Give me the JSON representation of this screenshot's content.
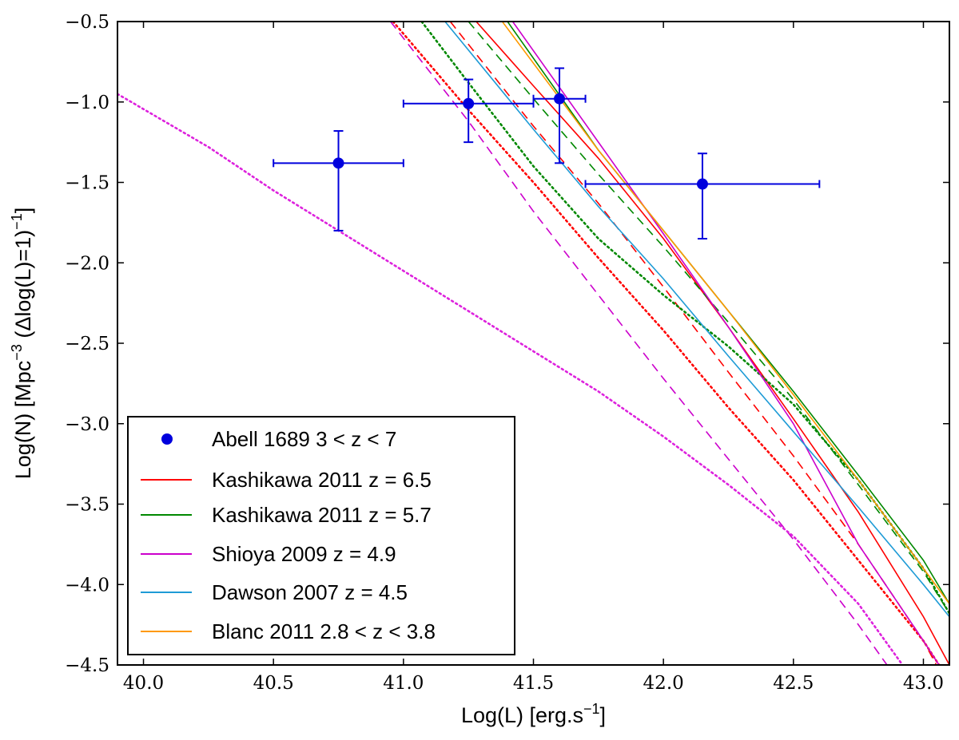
{
  "chart_data": {
    "type": "line",
    "xlabel": "Log(L) [erg.s",
    "xlabel_sup": "−1",
    "xlabel_end": "]",
    "ylabel": "Log(N) [Mpc",
    "ylabel_sup": "−3",
    "ylabel_mid": " (Δlog(L)=1)",
    "ylabel_sup2": "−1",
    "ylabel_end": "]",
    "xlim": [
      39.9,
      43.1
    ],
    "ylim": [
      -4.5,
      -0.5
    ],
    "x_ticks": [
      40.0,
      40.5,
      41.0,
      41.5,
      42.0,
      42.5,
      43.0
    ],
    "x_tick_labels": [
      "40.0",
      "40.5",
      "41.0",
      "41.5",
      "42.0",
      "42.5",
      "43.0"
    ],
    "y_ticks": [
      -0.5,
      -1.0,
      -1.5,
      -2.0,
      -2.5,
      -3.0,
      -3.5,
      -4.0,
      -4.5
    ],
    "y_tick_labels": [
      "−0.5",
      "−1.0",
      "−1.5",
      "−2.0",
      "−2.5",
      "−3.0",
      "−3.5",
      "−4.0",
      "−4.5"
    ],
    "legend_position": "lower-left",
    "observations": {
      "name": "Abell 1689 3 < z < 7",
      "color": "#0000dd",
      "points": [
        {
          "x": 40.75,
          "y": -1.38,
          "xerr": [
            0.25,
            0.25
          ],
          "yerr": [
            0.42,
            0.2
          ]
        },
        {
          "x": 41.25,
          "y": -1.01,
          "xerr": [
            0.25,
            0.25
          ],
          "yerr": [
            0.24,
            0.15
          ]
        },
        {
          "x": 41.6,
          "y": -0.98,
          "xerr": [
            0.1,
            0.1
          ],
          "yerr": [
            0.4,
            0.19
          ]
        },
        {
          "x": 42.15,
          "y": -1.51,
          "xerr": [
            0.45,
            0.45
          ],
          "yerr": [
            0.34,
            0.19
          ]
        }
      ]
    },
    "series": [
      {
        "name": "Kashikawa 2011 z = 6.5",
        "color": "#ff0000",
        "style": "solid",
        "x": [
          41.28,
          41.5,
          41.75,
          42.0,
          42.25,
          42.5,
          42.75,
          43.0,
          43.1
        ],
        "y": [
          -0.5,
          -0.9,
          -1.35,
          -1.85,
          -2.4,
          -2.97,
          -3.55,
          -4.2,
          -4.5
        ]
      },
      {
        "name": "",
        "color": "#ff0000",
        "style": "dashed",
        "x": [
          41.18,
          41.5,
          41.75,
          42.0,
          42.25,
          42.5,
          42.75,
          43.0,
          43.05
        ],
        "y": [
          -0.5,
          -1.15,
          -1.63,
          -2.15,
          -2.68,
          -3.2,
          -3.75,
          -4.35,
          -4.5
        ]
      },
      {
        "name": "",
        "color": "#ff0000",
        "style": "dotted",
        "x": [
          40.96,
          41.25,
          41.5,
          41.75,
          42.0,
          42.25,
          42.5,
          42.75,
          43.0,
          43.06
        ],
        "y": [
          -0.5,
          -1.05,
          -1.5,
          -1.97,
          -2.42,
          -2.9,
          -3.35,
          -3.85,
          -4.35,
          -4.5
        ]
      },
      {
        "name": "Kashikawa 2011 z = 5.7",
        "color": "#008800",
        "style": "solid",
        "x": [
          41.4,
          41.75,
          42.0,
          42.25,
          42.5,
          42.75,
          43.0,
          43.1
        ],
        "y": [
          -0.5,
          -1.3,
          -1.8,
          -2.3,
          -2.8,
          -3.32,
          -3.85,
          -4.12
        ]
      },
      {
        "name": "",
        "color": "#008800",
        "style": "dashed",
        "x": [
          41.25,
          41.5,
          41.75,
          42.0,
          42.25,
          42.5,
          42.75,
          43.0,
          43.1
        ],
        "y": [
          -0.5,
          -0.98,
          -1.45,
          -1.9,
          -2.37,
          -2.85,
          -3.38,
          -3.92,
          -4.18
        ]
      },
      {
        "name": "",
        "color": "#008800",
        "style": "dotted",
        "x": [
          41.07,
          41.25,
          41.5,
          41.75,
          42.0,
          42.25,
          42.5,
          42.75,
          43.0,
          43.1
        ],
        "y": [
          -0.5,
          -0.88,
          -1.4,
          -1.85,
          -2.2,
          -2.52,
          -2.88,
          -3.35,
          -3.9,
          -4.18
        ]
      },
      {
        "name": "Shioya 2009 z = 4.9",
        "color": "#cc00cc",
        "style": "solid",
        "x": [
          41.42,
          41.75,
          42.0,
          42.25,
          42.5,
          42.75,
          43.0,
          43.06
        ],
        "y": [
          -0.5,
          -1.25,
          -1.82,
          -2.4,
          -3.0,
          -3.75,
          -4.35,
          -4.5
        ]
      },
      {
        "name": "",
        "color": "#cc00cc",
        "style": "dashed",
        "x": [
          40.95,
          41.25,
          41.5,
          41.75,
          42.0,
          42.25,
          42.5,
          42.75,
          42.86
        ],
        "y": [
          -0.5,
          -1.12,
          -1.68,
          -2.2,
          -2.72,
          -3.22,
          -3.72,
          -4.25,
          -4.5
        ]
      },
      {
        "name": "",
        "color": "#dd22dd",
        "style": "dotted",
        "x": [
          39.9,
          40.25,
          40.5,
          40.75,
          41.0,
          41.25,
          41.5,
          41.75,
          42.0,
          42.25,
          42.5,
          42.75,
          42.92
        ],
        "y": [
          -0.95,
          -1.28,
          -1.55,
          -1.8,
          -2.05,
          -2.3,
          -2.55,
          -2.8,
          -3.08,
          -3.38,
          -3.7,
          -4.12,
          -4.5
        ]
      },
      {
        "name": "Dawson 2007 z = 4.5",
        "color": "#1e9bd6",
        "style": "solid",
        "x": [
          41.16,
          41.5,
          41.75,
          42.0,
          42.25,
          42.5,
          42.75,
          43.0,
          43.1
        ],
        "y": [
          -0.5,
          -1.17,
          -1.65,
          -2.1,
          -2.58,
          -3.05,
          -3.52,
          -4.0,
          -4.2
        ]
      },
      {
        "name": "Blanc 2011 2.8 < z < 3.8",
        "color": "#ff9900",
        "style": "solid",
        "x": [
          41.38,
          41.75,
          42.0,
          42.25,
          42.5,
          42.75,
          43.0,
          43.1
        ],
        "y": [
          -0.5,
          -1.3,
          -1.8,
          -2.3,
          -2.82,
          -3.35,
          -3.9,
          -4.12
        ]
      }
    ]
  }
}
